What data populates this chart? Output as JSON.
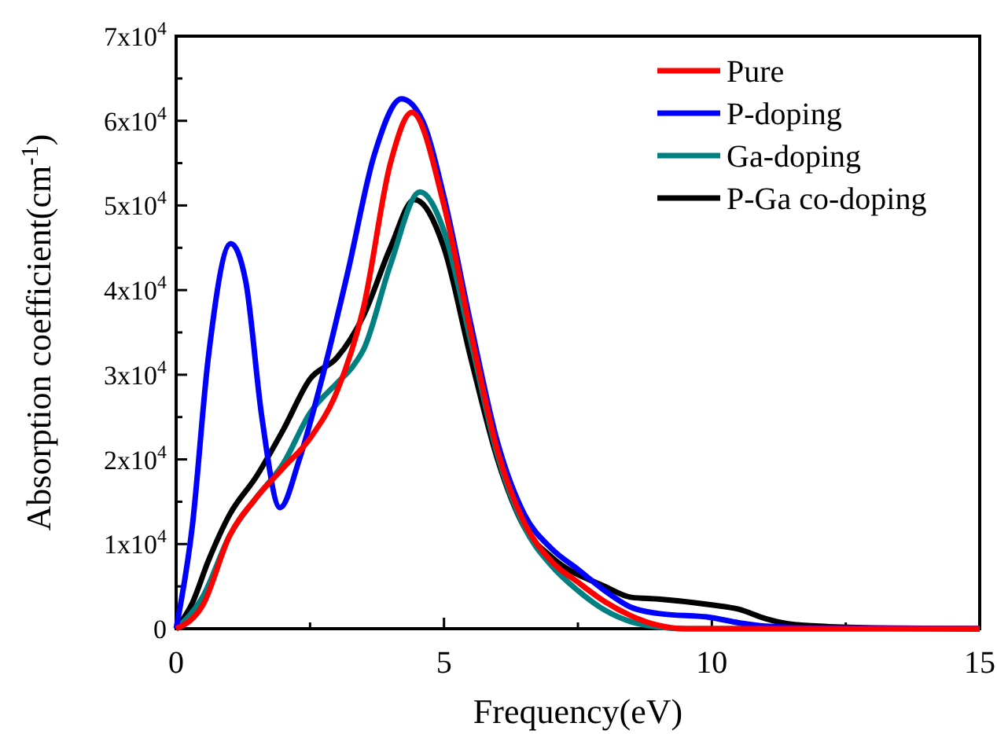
{
  "chart_data": {
    "type": "line",
    "xlabel": "Frequency(eV)",
    "ylabel": "Absorption coefficient(cm$^{-1}$)",
    "xlim": [
      0,
      15
    ],
    "ylim": [
      0,
      70000
    ],
    "xticks": [
      0,
      {
        "value": 2.5,
        "label": null
      },
      5,
      {
        "value": 7.5,
        "label": null
      },
      10,
      {
        "value": 12.5,
        "label": null
      },
      15
    ],
    "yticks": [
      0,
      {
        "value": 5000,
        "label": null
      },
      {
        "value": 10000,
        "label": "1x10$^{4}$"
      },
      {
        "value": 15000,
        "label": null
      },
      {
        "value": 20000,
        "label": "2x10$^{4}$"
      },
      {
        "value": 25000,
        "label": null
      },
      {
        "value": 30000,
        "label": "3x10$^{4}$"
      },
      {
        "value": 35000,
        "label": null
      },
      {
        "value": 40000,
        "label": "4x10$^{4}$"
      },
      {
        "value": 45000,
        "label": null
      },
      {
        "value": 50000,
        "label": "5x10$^{4}$"
      },
      {
        "value": 55000,
        "label": null
      },
      {
        "value": 60000,
        "label": "6x10$^{4}$"
      },
      {
        "value": 65000,
        "label": null
      },
      {
        "value": 70000,
        "label": "7x10$^{4}$"
      }
    ],
    "grid": false,
    "legend": "top right",
    "marker": "none",
    "line_style": "solid",
    "series": [
      {
        "name": "Pure",
        "color": "#ff0000",
        "x": [
          0,
          0.5,
          1,
          1.5,
          2,
          2.5,
          3,
          3.5,
          4,
          4.4,
          5,
          5.5,
          6,
          6.5,
          7,
          7.5,
          8,
          8.5,
          9,
          9.5,
          15
        ],
        "values": [
          0,
          2800,
          11000,
          15500,
          19000,
          22500,
          28000,
          38000,
          55000,
          61000,
          50000,
          35000,
          21000,
          12500,
          8000,
          5500,
          3200,
          1500,
          400,
          0,
          0
        ]
      },
      {
        "name": "P-doping",
        "color": "#0000ff",
        "x": [
          0,
          0.3,
          0.6,
          1.02,
          1.3,
          1.6,
          1.94,
          2.3,
          2.7,
          3.2,
          3.7,
          4.21,
          4.6,
          5,
          5.5,
          6,
          6.5,
          7,
          7.5,
          8,
          8.5,
          9,
          10,
          10.5,
          11,
          12,
          15
        ],
        "values": [
          0,
          12000,
          32000,
          45500,
          41000,
          25000,
          14300,
          20000,
          29000,
          42000,
          56000,
          62600,
          60000,
          51000,
          36000,
          22000,
          13500,
          9500,
          7000,
          4500,
          2500,
          1800,
          1300,
          700,
          300,
          100,
          0
        ]
      },
      {
        "name": "Ga-doping",
        "color": "#008080",
        "x": [
          0,
          0.5,
          1,
          1.5,
          2,
          2.5,
          3,
          3.3,
          3.5,
          4,
          4.55,
          5,
          5.5,
          6,
          6.5,
          7,
          7.5,
          8,
          8.5,
          9,
          9.5,
          15
        ],
        "values": [
          0,
          3800,
          11000,
          15500,
          19500,
          25500,
          29000,
          31000,
          33000,
          43000,
          51600,
          47000,
          34000,
          20500,
          12000,
          7500,
          4500,
          2200,
          800,
          200,
          0,
          0
        ]
      },
      {
        "name": "P-Ga co-doping",
        "color": "#000000",
        "x": [
          0,
          0.3,
          0.6,
          1,
          1.5,
          2,
          2.5,
          3,
          3.5,
          4,
          4.45,
          5,
          5.5,
          6,
          6.5,
          7,
          8,
          8.5,
          9,
          10,
          10.5,
          11,
          11.4,
          12,
          13,
          15
        ],
        "values": [
          0,
          3000,
          8000,
          13500,
          18000,
          23500,
          29500,
          32000,
          37000,
          45000,
          50700,
          45000,
          32000,
          20000,
          12000,
          8500,
          5000,
          3700,
          3500,
          2800,
          2300,
          1200,
          600,
          300,
          100,
          0
        ]
      }
    ]
  }
}
